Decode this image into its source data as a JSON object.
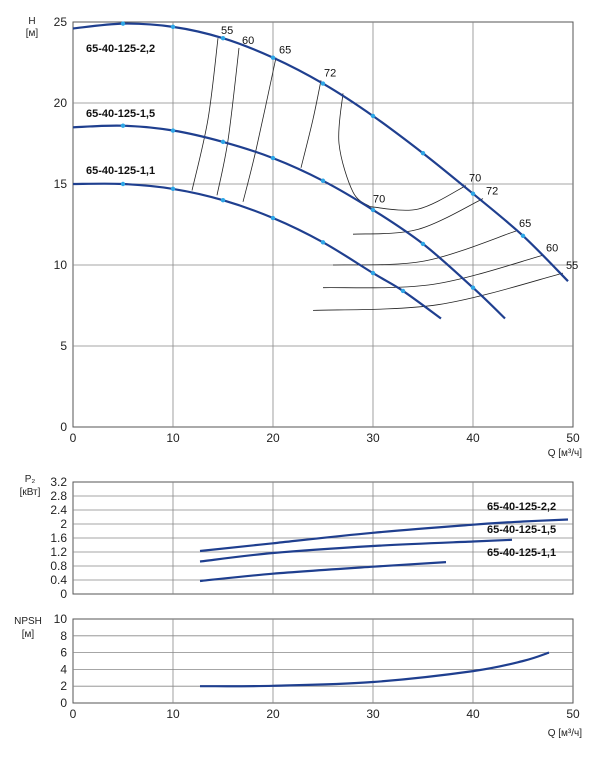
{
  "chart_data": [
    {
      "type": "line",
      "title": "",
      "ylabel": "H\n[м]",
      "xlabel": "Q [м³/ч]",
      "xlim": [
        0,
        50
      ],
      "ylim": [
        0,
        25
      ],
      "xticks": [
        0,
        10,
        20,
        30,
        40,
        50
      ],
      "yticks": [
        0,
        5,
        10,
        15,
        20,
        25
      ],
      "grid": true,
      "series": [
        {
          "name": "65-40-125-2,2",
          "color": "#1f3f8f",
          "x": [
            0,
            5,
            10,
            15,
            20,
            25,
            30,
            35,
            40,
            45,
            49.5
          ],
          "y": [
            24.6,
            24.9,
            24.7,
            24.0,
            22.8,
            21.2,
            19.2,
            16.9,
            14.4,
            11.8,
            9.0
          ]
        },
        {
          "name": "65-40-125-1,5",
          "color": "#1f3f8f",
          "x": [
            0,
            5,
            10,
            15,
            20,
            25,
            30,
            35,
            40,
            43.2
          ],
          "y": [
            18.5,
            18.6,
            18.3,
            17.6,
            16.6,
            15.2,
            13.4,
            11.3,
            8.6,
            6.7
          ]
        },
        {
          "name": "65-40-125-1,1",
          "color": "#1f3f8f",
          "x": [
            0,
            5,
            10,
            15,
            20,
            25,
            30,
            33,
            36.8
          ],
          "y": [
            15.0,
            15.0,
            14.7,
            14.0,
            12.9,
            11.4,
            9.5,
            8.4,
            6.7
          ]
        }
      ],
      "efficiency_lines": [
        {
          "label": "55",
          "x": [
            11.9,
            13.5,
            14.5
          ],
          "y": [
            14.6,
            19.0,
            24.0
          ]
        },
        {
          "label": "60",
          "x": [
            14.4,
            15.5,
            16.6
          ],
          "y": [
            14.3,
            17.7,
            23.4
          ]
        },
        {
          "label": "65",
          "x": [
            17.0,
            18.3,
            20.3
          ],
          "y": [
            13.9,
            17.1,
            22.8
          ]
        },
        {
          "label": "72",
          "x": [
            22.8,
            24.0,
            24.8
          ],
          "y": [
            16.0,
            19.0,
            21.4
          ]
        },
        {
          "label": "70",
          "x": [
            27.0,
            26.6,
            28.0,
            29.7
          ],
          "y": [
            20.6,
            17.5,
            14.5,
            13.6
          ]
        }
      ],
      "efficiency_labels_right": [
        {
          "label": "70",
          "x": 39.3,
          "y": 14.9
        },
        {
          "label": "72",
          "x": 41.0,
          "y": 14.1
        },
        {
          "label": "65",
          "x": 44.3,
          "y": 12.1
        },
        {
          "label": "60",
          "x": 47.0,
          "y": 10.6
        },
        {
          "label": "55",
          "x": 49.0,
          "y": 9.5
        }
      ],
      "model_labels": [
        "65-40-125-2,2",
        "65-40-125-1,5",
        "65-40-125-1,1"
      ]
    },
    {
      "type": "line",
      "title": "",
      "ylabel": "P₂\n[кВт]",
      "xlim": [
        0,
        50
      ],
      "ylim": [
        0,
        3.2
      ],
      "yticks": [
        0,
        0.4,
        0.8,
        1.2,
        1.6,
        2,
        2.4,
        2.8,
        3.2
      ],
      "grid": true,
      "series": [
        {
          "name": "65-40-125-2,2",
          "color": "#1f3f8f",
          "x": [
            12.7,
            20,
            30,
            40,
            45,
            49.5
          ],
          "y": [
            1.23,
            1.45,
            1.75,
            1.98,
            2.07,
            2.13
          ]
        },
        {
          "name": "65-40-125-1,5",
          "color": "#1f3f8f",
          "x": [
            12.7,
            20,
            30,
            40,
            43.9
          ],
          "y": [
            0.93,
            1.17,
            1.37,
            1.5,
            1.55
          ]
        },
        {
          "name": "65-40-125-1,1",
          "color": "#1f3f8f",
          "x": [
            12.7,
            20,
            30,
            37.3
          ],
          "y": [
            0.37,
            0.58,
            0.78,
            0.91
          ]
        }
      ],
      "model_labels": [
        "65-40-125-2,2",
        "65-40-125-1,5",
        "65-40-125-1,1"
      ]
    },
    {
      "type": "line",
      "title": "",
      "ylabel": "NPSH\n[м]",
      "xlabel": "Q [м³/ч]",
      "xlim": [
        0,
        50
      ],
      "ylim": [
        0,
        10
      ],
      "xticks": [
        0,
        10,
        20,
        30,
        40,
        50
      ],
      "yticks": [
        0,
        2,
        4,
        6,
        8,
        10
      ],
      "grid": true,
      "series": [
        {
          "name": "",
          "color": "#1f3f8f",
          "x": [
            12.7,
            20,
            30,
            40,
            45,
            47.6
          ],
          "y": [
            2.0,
            2.05,
            2.5,
            3.8,
            5.0,
            6.0
          ]
        }
      ]
    }
  ],
  "ui": {
    "chart1_ylabel_line1": "H",
    "chart1_ylabel_line2": "[м]",
    "chart2_ylabel_line1": "P₂",
    "chart2_ylabel_line2": "[кВт]",
    "chart3_ylabel_line1": "NPSH",
    "chart3_ylabel_line2": "[м]",
    "xlabel": "Q [м³/ч]",
    "colors": {
      "curve": "#1f3f8f",
      "marker": "#2ea6e6",
      "grid": "#888888",
      "eff": "#222222"
    }
  }
}
